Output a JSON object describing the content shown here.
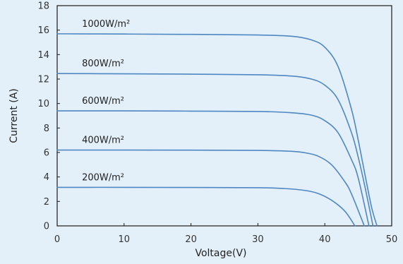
{
  "chart_data": {
    "type": "line",
    "xlabel": "Voltage(V)",
    "ylabel": "Current (A)",
    "xlim": [
      0,
      50
    ],
    "ylim": [
      0,
      18
    ],
    "xticks": [
      "0",
      "10",
      "20",
      "30",
      "40",
      "50"
    ],
    "yticks": [
      "0",
      "2",
      "4",
      "6",
      "8",
      "10",
      "12",
      "14",
      "16",
      "18"
    ],
    "grid": false,
    "legend": "none",
    "line_color": "#4e87c1",
    "background_color": "#e3f0f9",
    "series": [
      {
        "name": "1000W/m²",
        "x": [
          0,
          10,
          20,
          30,
          35,
          38,
          40,
          42,
          44,
          45,
          46,
          47,
          47.8
        ],
        "y": [
          15.7,
          15.68,
          15.65,
          15.6,
          15.5,
          15.2,
          14.6,
          13.0,
          9.5,
          7.0,
          4.2,
          1.5,
          0
        ]
      },
      {
        "name": "800W/m²",
        "x": [
          0,
          10,
          20,
          30,
          35,
          38,
          40,
          42,
          44,
          45,
          46,
          47.2
        ],
        "y": [
          12.45,
          12.43,
          12.4,
          12.35,
          12.25,
          12.0,
          11.5,
          10.3,
          7.6,
          5.6,
          3.2,
          0
        ]
      },
      {
        "name": "600W/m²",
        "x": [
          0,
          10,
          20,
          30,
          35,
          38,
          40,
          42,
          44,
          45,
          46.6
        ],
        "y": [
          9.4,
          9.4,
          9.38,
          9.35,
          9.25,
          9.05,
          8.6,
          7.6,
          5.4,
          3.9,
          0
        ]
      },
      {
        "name": "400W/m²",
        "x": [
          0,
          10,
          20,
          30,
          35,
          37,
          39,
          41,
          43,
          44,
          45.9
        ],
        "y": [
          6.2,
          6.2,
          6.19,
          6.17,
          6.1,
          5.98,
          5.7,
          5.0,
          3.6,
          2.6,
          0
        ]
      },
      {
        "name": "200W/m²",
        "x": [
          0,
          10,
          20,
          30,
          34,
          37,
          39,
          41,
          43,
          44.5
        ],
        "y": [
          3.15,
          3.15,
          3.14,
          3.12,
          3.05,
          2.9,
          2.65,
          2.1,
          1.2,
          0
        ]
      }
    ]
  }
}
